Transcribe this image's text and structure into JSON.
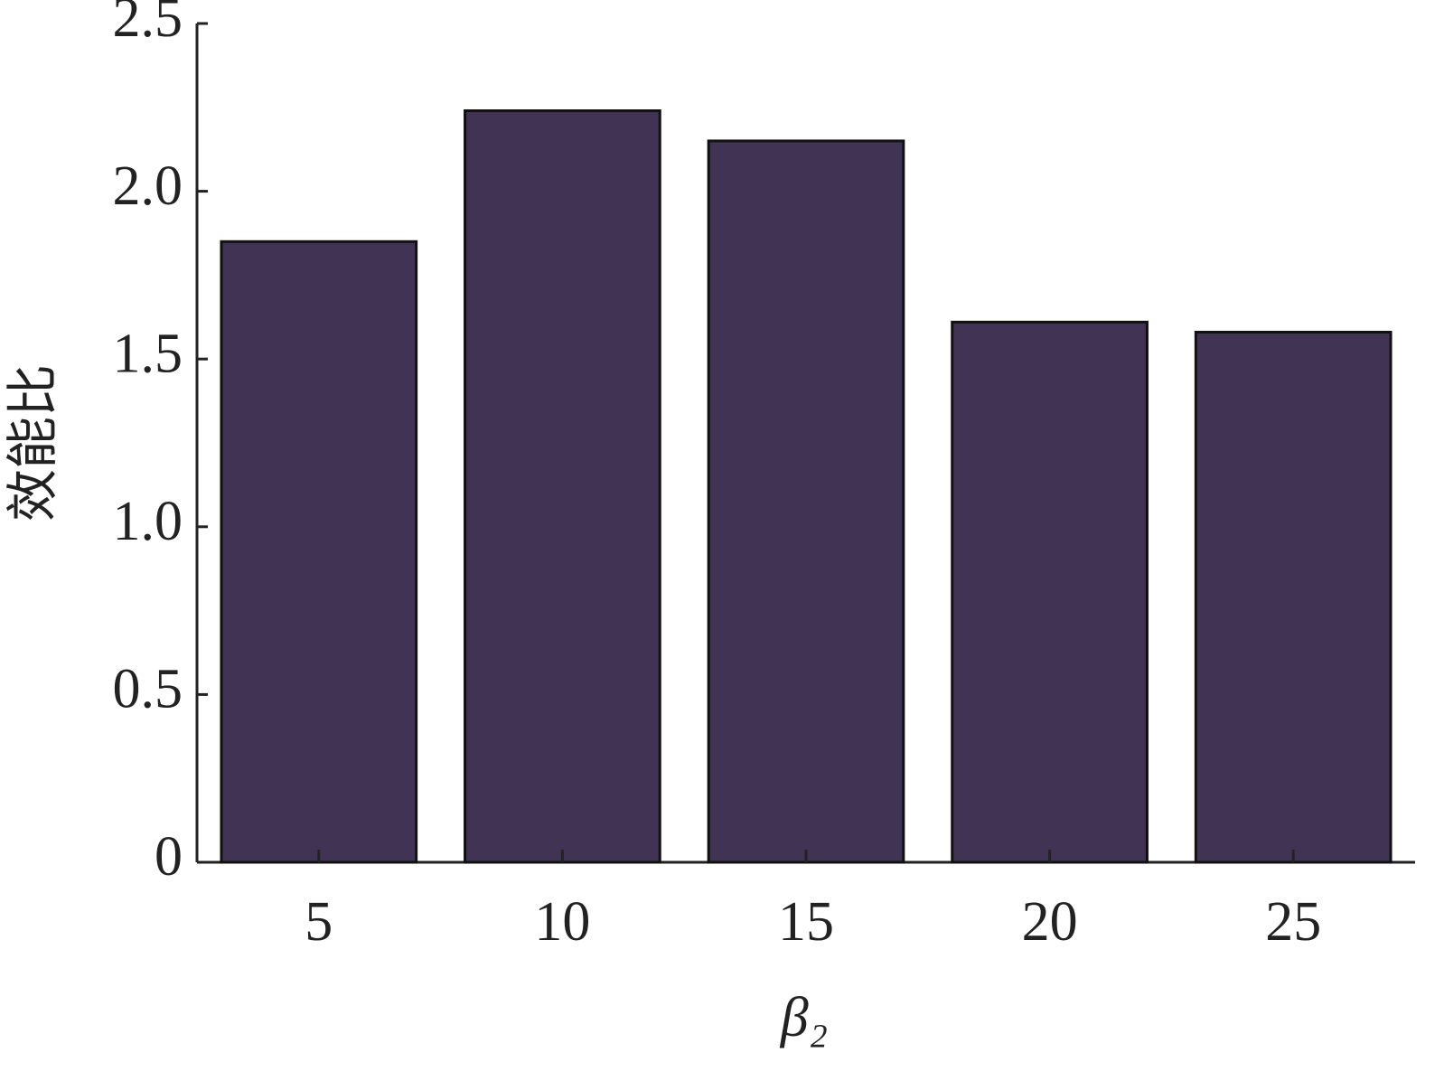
{
  "chart_data": {
    "type": "bar",
    "x_label": "β₂",
    "y_label": "效能比",
    "categories": [
      "5",
      "10",
      "15",
      "20",
      "25"
    ],
    "values": [
      1.85,
      2.24,
      2.15,
      1.61,
      1.58
    ],
    "color": "#413353",
    "ylim": [
      0,
      2.5
    ],
    "yticks": [
      0,
      0.5,
      {
        "value": 1,
        "label": "1.0"
      },
      1.5,
      {
        "value": 2,
        "label": "2.0"
      },
      2.5
    ],
    "grid": false
  }
}
